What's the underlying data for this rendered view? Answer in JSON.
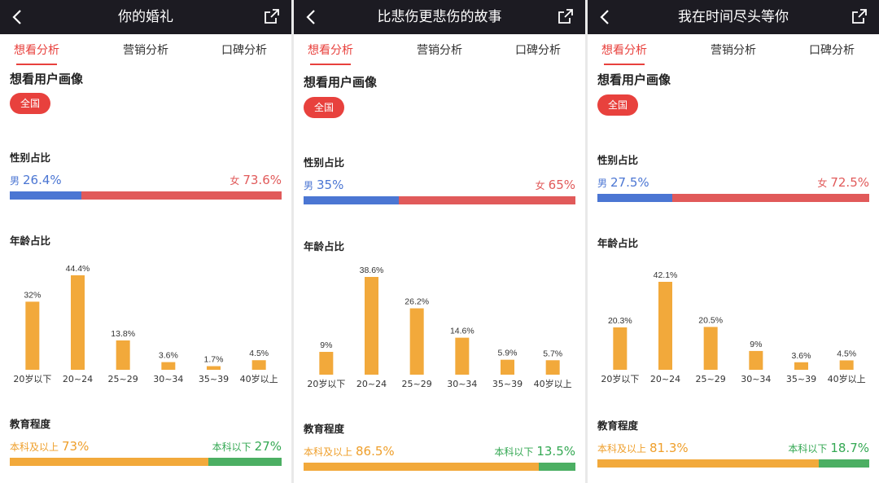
{
  "colors": {
    "topbar": "#1c1b22",
    "accent": "#e8413d",
    "male": "#4b76d3",
    "female": "#e15a5a",
    "age_bar": "#f2a93b",
    "edu_above": "#f2a93b",
    "edu_below": "#4caf63"
  },
  "screens": [
    {
      "title": "你的婚礼",
      "tabs": [
        "想看分析",
        "营销分析",
        "口碑分析"
      ],
      "section_title": "想看用户画像",
      "region": "全国",
      "gender_label": "性别占比",
      "male_label": "男",
      "male_value": "26.4%",
      "male_share": 26.4,
      "female_label": "女",
      "female_value": "73.6%",
      "age_label": "年龄占比",
      "edu_label": "教育程度",
      "edu_above_label": "本科及以上",
      "edu_above_value": "73%",
      "edu_above_share": 73,
      "edu_below_label": "本科以下",
      "edu_below_value": "27%"
    },
    {
      "title": "比悲伤更悲伤的故事",
      "tabs": [
        "想看分析",
        "营销分析",
        "口碑分析"
      ],
      "section_title": "想看用户画像",
      "region": "全国",
      "gender_label": "性别占比",
      "male_label": "男",
      "male_value": "35%",
      "male_share": 35,
      "female_label": "女",
      "female_value": "65%",
      "age_label": "年龄占比",
      "edu_label": "教育程度",
      "edu_above_label": "本科及以上",
      "edu_above_value": "86.5%",
      "edu_above_share": 86.5,
      "edu_below_label": "本科以下",
      "edu_below_value": "13.5%"
    },
    {
      "title": "我在时间尽头等你",
      "tabs": [
        "想看分析",
        "营销分析",
        "口碑分析"
      ],
      "section_title": "想看用户画像",
      "region": "全国",
      "gender_label": "性别占比",
      "male_label": "男",
      "male_value": "27.5%",
      "male_share": 27.5,
      "female_label": "女",
      "female_value": "72.5%",
      "age_label": "年龄占比",
      "edu_label": "教育程度",
      "edu_above_label": "本科及以上",
      "edu_above_value": "81.3%",
      "edu_above_share": 81.3,
      "edu_below_label": "本科以下",
      "edu_below_value": "18.7%"
    }
  ],
  "chart_data": [
    {
      "type": "bar",
      "categories": [
        "20岁以下",
        "20~24",
        "25~29",
        "30~34",
        "35~39",
        "40岁以上"
      ],
      "values": [
        32,
        44.4,
        13.8,
        3.6,
        1.7,
        4.5
      ],
      "value_labels": [
        "32%",
        "44.4%",
        "13.8%",
        "3.6%",
        "1.7%",
        "4.5%"
      ],
      "ylim": [
        0,
        44.4
      ]
    },
    {
      "type": "bar",
      "categories": [
        "20岁以下",
        "20~24",
        "25~29",
        "30~34",
        "35~39",
        "40岁以上"
      ],
      "values": [
        9,
        38.6,
        26.2,
        14.6,
        5.9,
        5.7
      ],
      "value_labels": [
        "9%",
        "38.6%",
        "26.2%",
        "14.6%",
        "5.9%",
        "5.7%"
      ],
      "ylim": [
        0,
        38.6
      ]
    },
    {
      "type": "bar",
      "categories": [
        "20岁以下",
        "20~24",
        "25~29",
        "30~34",
        "35~39",
        "40岁以上"
      ],
      "values": [
        20.3,
        42.1,
        20.5,
        9,
        3.6,
        4.5
      ],
      "value_labels": [
        "20.3%",
        "42.1%",
        "20.5%",
        "9%",
        "3.6%",
        "4.5%"
      ],
      "ylim": [
        0,
        42.1
      ]
    }
  ]
}
